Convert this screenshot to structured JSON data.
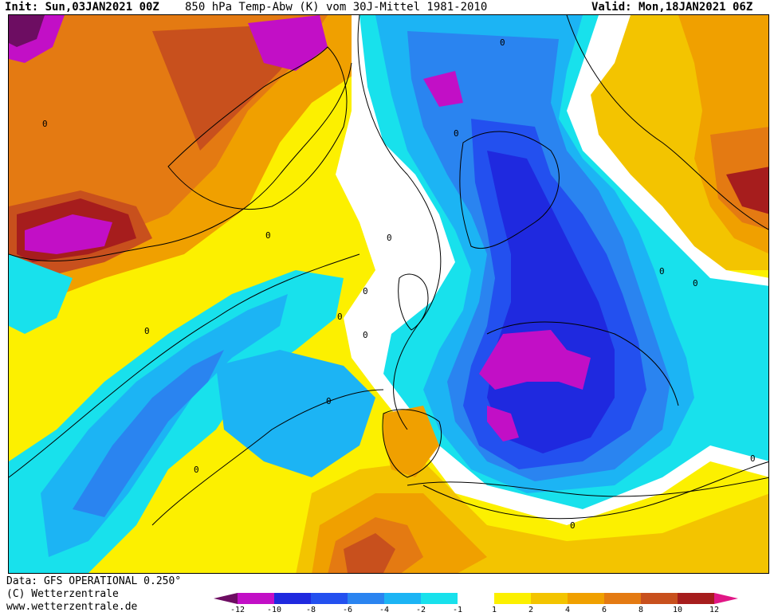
{
  "header": {
    "init": "Init: Sun,03JAN2021 00Z",
    "title": "850 hPa Temp-Abw (K) vom 30J-Mittel 1981-2010",
    "valid": "Valid: Mon,18JAN2021 06Z"
  },
  "footer": {
    "data_line": "Data: GFS OPERATIONAL 0.250°",
    "copyright": "(C) Wetterzentrale",
    "url": "www.wetterzentrale.de"
  },
  "map": {
    "contour_labels": [
      "0",
      "0",
      "0",
      "0",
      "0",
      "0",
      "0",
      "0",
      "0",
      "0",
      "0",
      "0",
      "0",
      "0",
      "0"
    ]
  },
  "legend": {
    "tick_labels": [
      "-12",
      "-10",
      "-8",
      "-6",
      "-4",
      "-2",
      "-1",
      "1",
      "2",
      "4",
      "6",
      "8",
      "10",
      "12"
    ],
    "colors": [
      "#6d0d62",
      "#c20fc6",
      "#1f29df",
      "#2350ef",
      "#2a84f0",
      "#1cb4f4",
      "#18e1ec",
      "#ffffff",
      "#fcf000",
      "#f3c400",
      "#f0a000",
      "#e47a12",
      "#c8501d",
      "#a61d1d",
      "#e11786"
    ]
  }
}
